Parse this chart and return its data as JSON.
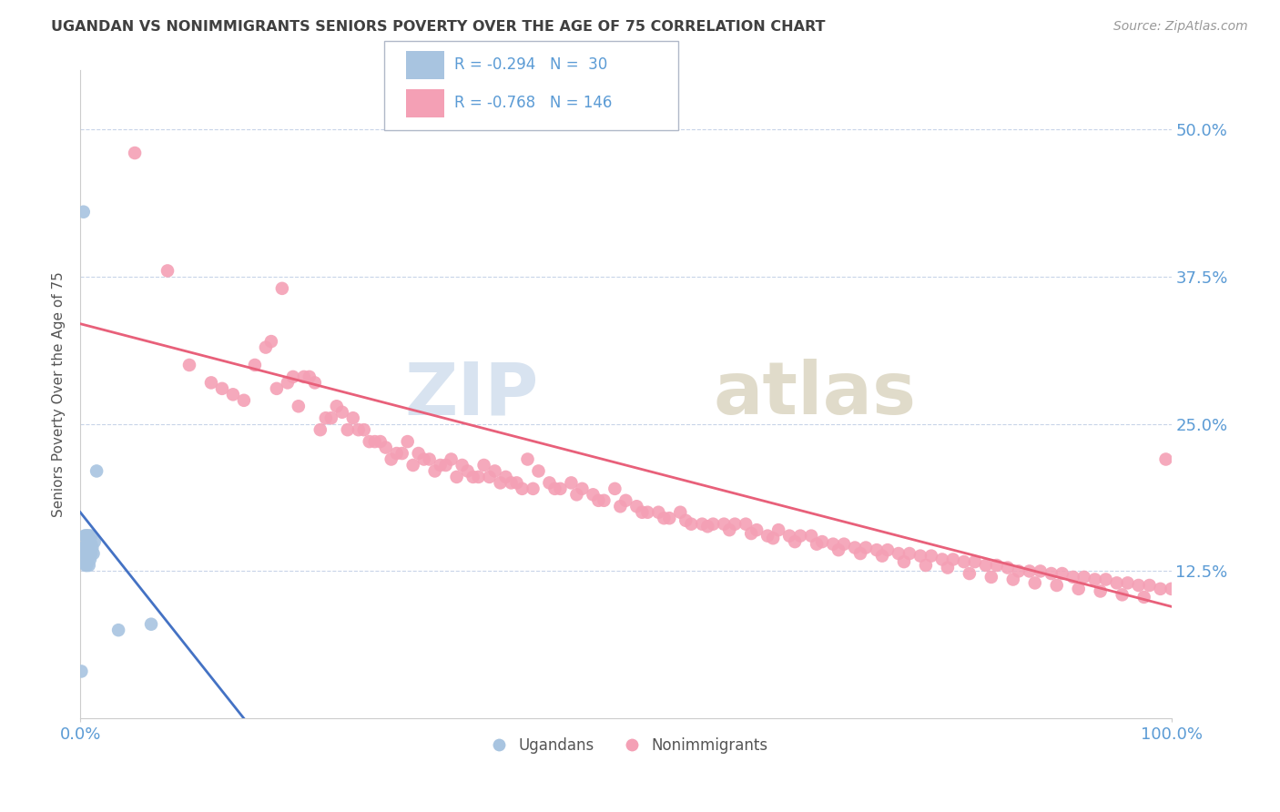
{
  "title": "UGANDAN VS NONIMMIGRANTS SENIORS POVERTY OVER THE AGE OF 75 CORRELATION CHART",
  "source": "Source: ZipAtlas.com",
  "ylabel": "Seniors Poverty Over the Age of 75",
  "y_tick_labels": [
    "12.5%",
    "25.0%",
    "37.5%",
    "50.0%"
  ],
  "y_tick_values": [
    0.125,
    0.25,
    0.375,
    0.5
  ],
  "xlim": [
    0.0,
    1.0
  ],
  "ylim": [
    0.0,
    0.55
  ],
  "legend_r1": "R = -0.294",
  "legend_n1": "N =  30",
  "legend_r2": "R = -0.768",
  "legend_n2": "N = 146",
  "ugandan_color": "#a8c4e0",
  "nonimmigrant_color": "#f4a0b5",
  "ugandan_line_color": "#4472c4",
  "nonimmigrant_line_color": "#e8607a",
  "watermark_zip_color": "#c8d8f0",
  "watermark_atlas_color": "#d0c8b0",
  "axis_label_color": "#5b9bd5",
  "background_color": "#ffffff",
  "grid_color": "#c8d4e8",
  "title_color": "#404040",
  "ugandan_x": [
    0.001,
    0.002,
    0.003,
    0.004,
    0.004,
    0.005,
    0.005,
    0.005,
    0.006,
    0.006,
    0.006,
    0.006,
    0.007,
    0.007,
    0.007,
    0.008,
    0.008,
    0.008,
    0.009,
    0.009,
    0.01,
    0.01,
    0.01,
    0.011,
    0.012,
    0.013,
    0.015,
    0.035,
    0.065,
    0.003
  ],
  "ugandan_y": [
    0.04,
    0.135,
    0.145,
    0.14,
    0.155,
    0.13,
    0.145,
    0.155,
    0.13,
    0.14,
    0.148,
    0.155,
    0.135,
    0.145,
    0.155,
    0.13,
    0.145,
    0.155,
    0.135,
    0.14,
    0.14,
    0.148,
    0.155,
    0.145,
    0.14,
    0.15,
    0.21,
    0.075,
    0.08,
    0.43
  ],
  "ugandan_line_x": [
    0.0,
    0.15
  ],
  "ugandan_line_y": [
    0.175,
    0.0
  ],
  "nonimmigrant_line_x": [
    0.0,
    1.0
  ],
  "nonimmigrant_line_y": [
    0.335,
    0.095
  ],
  "nonimmigrant_x": [
    0.05,
    0.08,
    0.1,
    0.12,
    0.14,
    0.16,
    0.17,
    0.18,
    0.19,
    0.2,
    0.21,
    0.22,
    0.23,
    0.24,
    0.25,
    0.26,
    0.27,
    0.28,
    0.29,
    0.3,
    0.31,
    0.32,
    0.33,
    0.34,
    0.35,
    0.36,
    0.37,
    0.38,
    0.39,
    0.4,
    0.41,
    0.42,
    0.43,
    0.44,
    0.45,
    0.46,
    0.47,
    0.48,
    0.49,
    0.5,
    0.51,
    0.52,
    0.53,
    0.54,
    0.55,
    0.56,
    0.57,
    0.58,
    0.59,
    0.6,
    0.61,
    0.62,
    0.63,
    0.64,
    0.65,
    0.66,
    0.67,
    0.68,
    0.69,
    0.7,
    0.71,
    0.72,
    0.73,
    0.74,
    0.75,
    0.76,
    0.77,
    0.78,
    0.79,
    0.8,
    0.81,
    0.82,
    0.83,
    0.84,
    0.85,
    0.86,
    0.87,
    0.88,
    0.89,
    0.9,
    0.91,
    0.92,
    0.93,
    0.94,
    0.95,
    0.96,
    0.97,
    0.98,
    0.99,
    1.0,
    0.13,
    0.15,
    0.175,
    0.195,
    0.215,
    0.235,
    0.255,
    0.275,
    0.295,
    0.315,
    0.335,
    0.355,
    0.375,
    0.395,
    0.415,
    0.435,
    0.455,
    0.475,
    0.495,
    0.515,
    0.535,
    0.555,
    0.575,
    0.595,
    0.615,
    0.635,
    0.655,
    0.675,
    0.695,
    0.715,
    0.735,
    0.755,
    0.775,
    0.795,
    0.815,
    0.835,
    0.855,
    0.875,
    0.895,
    0.915,
    0.935,
    0.955,
    0.975,
    0.995,
    0.185,
    0.205,
    0.225,
    0.245,
    0.265,
    0.285,
    0.305,
    0.325,
    0.345,
    0.365,
    0.385,
    0.405
  ],
  "nonimmigrant_y": [
    0.48,
    0.38,
    0.3,
    0.285,
    0.275,
    0.3,
    0.315,
    0.28,
    0.285,
    0.265,
    0.29,
    0.245,
    0.255,
    0.26,
    0.255,
    0.245,
    0.235,
    0.23,
    0.225,
    0.235,
    0.225,
    0.22,
    0.215,
    0.22,
    0.215,
    0.205,
    0.215,
    0.21,
    0.205,
    0.2,
    0.22,
    0.21,
    0.2,
    0.195,
    0.2,
    0.195,
    0.19,
    0.185,
    0.195,
    0.185,
    0.18,
    0.175,
    0.175,
    0.17,
    0.175,
    0.165,
    0.165,
    0.165,
    0.165,
    0.165,
    0.165,
    0.16,
    0.155,
    0.16,
    0.155,
    0.155,
    0.155,
    0.15,
    0.148,
    0.148,
    0.145,
    0.145,
    0.143,
    0.143,
    0.14,
    0.14,
    0.138,
    0.138,
    0.135,
    0.135,
    0.133,
    0.133,
    0.13,
    0.13,
    0.128,
    0.125,
    0.125,
    0.125,
    0.123,
    0.123,
    0.12,
    0.12,
    0.118,
    0.118,
    0.115,
    0.115,
    0.113,
    0.113,
    0.11,
    0.11,
    0.28,
    0.27,
    0.32,
    0.29,
    0.285,
    0.265,
    0.245,
    0.235,
    0.225,
    0.22,
    0.215,
    0.21,
    0.205,
    0.2,
    0.195,
    0.195,
    0.19,
    0.185,
    0.18,
    0.175,
    0.17,
    0.168,
    0.163,
    0.16,
    0.157,
    0.153,
    0.15,
    0.148,
    0.143,
    0.14,
    0.138,
    0.133,
    0.13,
    0.128,
    0.123,
    0.12,
    0.118,
    0.115,
    0.113,
    0.11,
    0.108,
    0.105,
    0.103,
    0.22,
    0.365,
    0.29,
    0.255,
    0.245,
    0.235,
    0.22,
    0.215,
    0.21,
    0.205,
    0.205,
    0.2,
    0.195
  ]
}
